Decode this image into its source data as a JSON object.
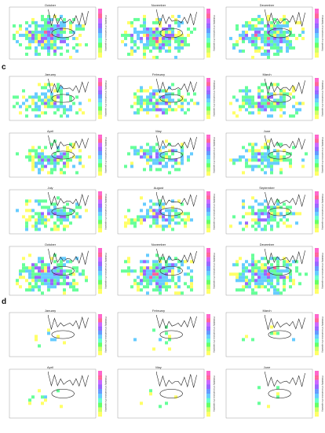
{
  "section_labels": {
    "c": "c",
    "d": "d"
  },
  "colorbar_title": "Probability of occurrence of a spawning",
  "colors": {
    "low": "#ffff66",
    "mid_low": "#66ff99",
    "mid": "#66ccff",
    "mid_high": "#9966ff",
    "high": "#ff6699",
    "coast": "#222222",
    "closure": "#333333"
  },
  "rows": [
    {
      "titles": [
        "October",
        "November",
        "December"
      ]
    },
    {
      "titles": [
        "January",
        "February",
        "March"
      ]
    },
    {
      "titles": [
        "April",
        "May",
        "June"
      ]
    },
    {
      "titles": [
        "July",
        "August",
        "September"
      ]
    },
    {
      "titles": [
        "October",
        "November",
        "December"
      ]
    },
    {
      "titles": [
        "January",
        "February",
        "March"
      ]
    },
    {
      "titles": [
        "April",
        "May",
        "June"
      ]
    }
  ]
}
